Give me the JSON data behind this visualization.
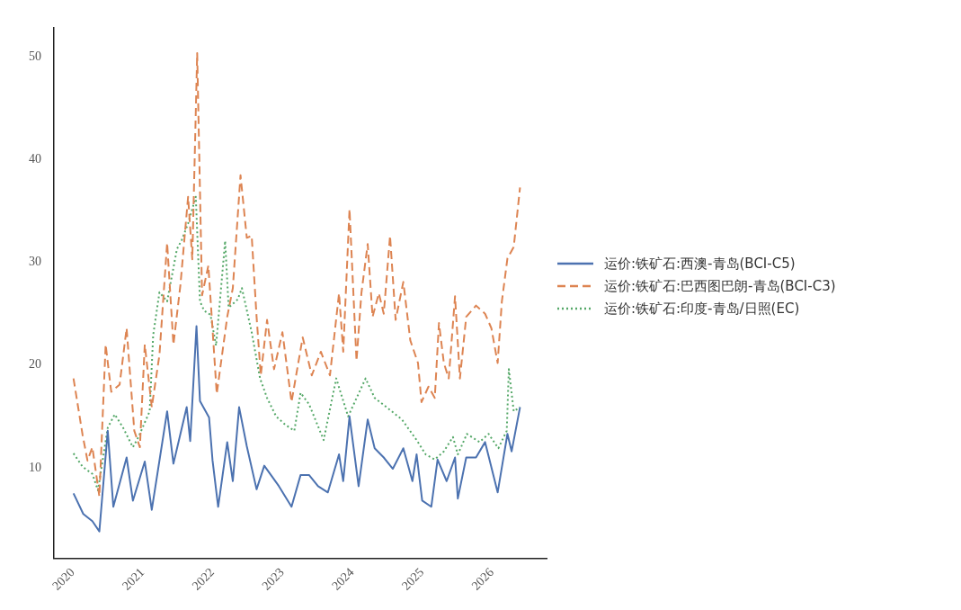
{
  "chart_data": {
    "type": "line",
    "xlim": [
      2019.73,
      2026.78
    ],
    "xticks": [
      2020,
      2021,
      2022,
      2023,
      2024,
      2025,
      2026
    ],
    "ylim": [
      1.2,
      52.9
    ],
    "yticks": [
      10,
      20,
      30,
      40,
      50
    ],
    "grid": false,
    "legend": "right",
    "series": [
      {
        "name": "运价:铁矿石:西澳-青岛(BCI-C5)",
        "color": "#4c72b0",
        "line_style": "solid",
        "x": [
          2020.01,
          2020.15,
          2020.28,
          2020.38,
          2020.5,
          2020.58,
          2020.77,
          2020.86,
          2021.03,
          2021.13,
          2021.35,
          2021.44,
          2021.63,
          2021.68,
          2021.77,
          2021.82,
          2021.95,
          2022.0,
          2022.08,
          2022.21,
          2022.29,
          2022.38,
          2022.49,
          2022.63,
          2022.74,
          2022.95,
          2023.13,
          2023.26,
          2023.38,
          2023.51,
          2023.65,
          2023.81,
          2023.87,
          2023.96,
          2024.09,
          2024.22,
          2024.32,
          2024.45,
          2024.58,
          2024.73,
          2024.86,
          2024.92,
          2025.0,
          2025.13,
          2025.22,
          2025.35,
          2025.47,
          2025.51,
          2025.63,
          2025.77,
          2025.9,
          2026.08,
          2026.22,
          2026.28,
          2026.4
        ],
        "values": [
          7.5,
          5.5,
          4.8,
          3.8,
          13.6,
          6.2,
          11,
          6.8,
          10.6,
          5.9,
          15.5,
          10.4,
          15.9,
          12.6,
          23.8,
          16.5,
          14.9,
          10.7,
          6.2,
          12.5,
          8.7,
          15.9,
          12.1,
          7.9,
          10.2,
          8.2,
          6.2,
          9.3,
          9.3,
          8.2,
          7.6,
          11.3,
          8.7,
          15,
          8.2,
          14.7,
          11.9,
          11,
          9.9,
          11.9,
          8.7,
          11.3,
          6.8,
          6.2,
          10.8,
          8.7,
          11,
          7,
          11,
          11,
          12.5,
          7.6,
          13.3,
          11.6,
          15.9
        ]
      },
      {
        "name": "运价:铁矿石:巴西图巴朗-青岛(BCI-C3)",
        "color": "#dd8452",
        "line_style": "dashed",
        "x": [
          2020.01,
          2020.14,
          2020.21,
          2020.28,
          2020.38,
          2020.47,
          2020.55,
          2020.67,
          2020.77,
          2020.88,
          2020.96,
          2021.03,
          2021.13,
          2021.24,
          2021.35,
          2021.44,
          2021.54,
          2021.65,
          2021.71,
          2021.78,
          2021.85,
          2021.94,
          2022.06,
          2022.21,
          2022.29,
          2022.4,
          2022.49,
          2022.56,
          2022.63,
          2022.69,
          2022.78,
          2022.88,
          2023.0,
          2023.13,
          2023.29,
          2023.42,
          2023.55,
          2023.68,
          2023.81,
          2023.87,
          2023.96,
          2024.06,
          2024.13,
          2024.22,
          2024.29,
          2024.38,
          2024.45,
          2024.54,
          2024.62,
          2024.73,
          2024.83,
          2024.94,
          2024.99,
          2025.09,
          2025.18,
          2025.24,
          2025.31,
          2025.38,
          2025.47,
          2025.54,
          2025.63,
          2025.77,
          2025.9,
          2025.99,
          2026.08,
          2026.14,
          2026.22,
          2026.31,
          2026.4
        ],
        "values": [
          18.7,
          13.2,
          10.7,
          12,
          7.2,
          22,
          17.4,
          18.1,
          23.6,
          13.6,
          12,
          22,
          15.9,
          21,
          31.9,
          22,
          27.8,
          36.4,
          30.3,
          50.4,
          26.8,
          29.7,
          17.2,
          24.7,
          27.5,
          38.5,
          32.4,
          32.6,
          24.7,
          19,
          24.4,
          19.6,
          23.2,
          16.4,
          22.7,
          19,
          21.3,
          19,
          27,
          21.3,
          35.2,
          20.4,
          27,
          31.8,
          24.7,
          27,
          25,
          32.6,
          24.4,
          28.1,
          22.4,
          20.2,
          16.4,
          17.9,
          16.8,
          24.1,
          20.2,
          18.7,
          26.7,
          18.7,
          24.7,
          25.8,
          25,
          23.6,
          20.2,
          26.2,
          30.4,
          31.5,
          37.3
        ]
      },
      {
        "name": "运价:铁矿石:印度-青岛/日照(EC)",
        "color": "#55a868",
        "line_style": "dotted",
        "x": [
          2020.01,
          2020.14,
          2020.28,
          2020.36,
          2020.5,
          2020.6,
          2020.72,
          2020.86,
          2020.94,
          2021.1,
          2021.15,
          2021.24,
          2021.35,
          2021.49,
          2021.56,
          2021.65,
          2021.76,
          2021.82,
          2021.88,
          2021.97,
          2022.05,
          2022.18,
          2022.23,
          2022.36,
          2022.42,
          2022.56,
          2022.68,
          2022.78,
          2022.91,
          2023.04,
          2023.17,
          2023.26,
          2023.38,
          2023.59,
          2023.77,
          2023.94,
          2024.19,
          2024.32,
          2024.49,
          2024.71,
          2024.92,
          2025.05,
          2025.18,
          2025.31,
          2025.44,
          2025.51,
          2025.64,
          2025.82,
          2025.95,
          2026.09,
          2026.21,
          2026.24,
          2026.31,
          2026.4
        ],
        "values": [
          11.4,
          10.1,
          9.4,
          7.8,
          13.9,
          15.2,
          13.9,
          12,
          13,
          15.5,
          22.9,
          27.1,
          26.2,
          31.3,
          32.2,
          33.8,
          36.4,
          26.2,
          25.3,
          24.9,
          21.9,
          32.1,
          25.6,
          26.4,
          27.5,
          23.2,
          18.7,
          16.8,
          15,
          14.2,
          13.6,
          17.3,
          16.2,
          12.7,
          18.7,
          15,
          18.7,
          16.8,
          15.9,
          14.7,
          12.7,
          11.3,
          10.8,
          11.6,
          13,
          11.3,
          13.3,
          12.5,
          13.3,
          11.9,
          13.6,
          19.6,
          15.5,
          15.9
        ]
      }
    ]
  }
}
